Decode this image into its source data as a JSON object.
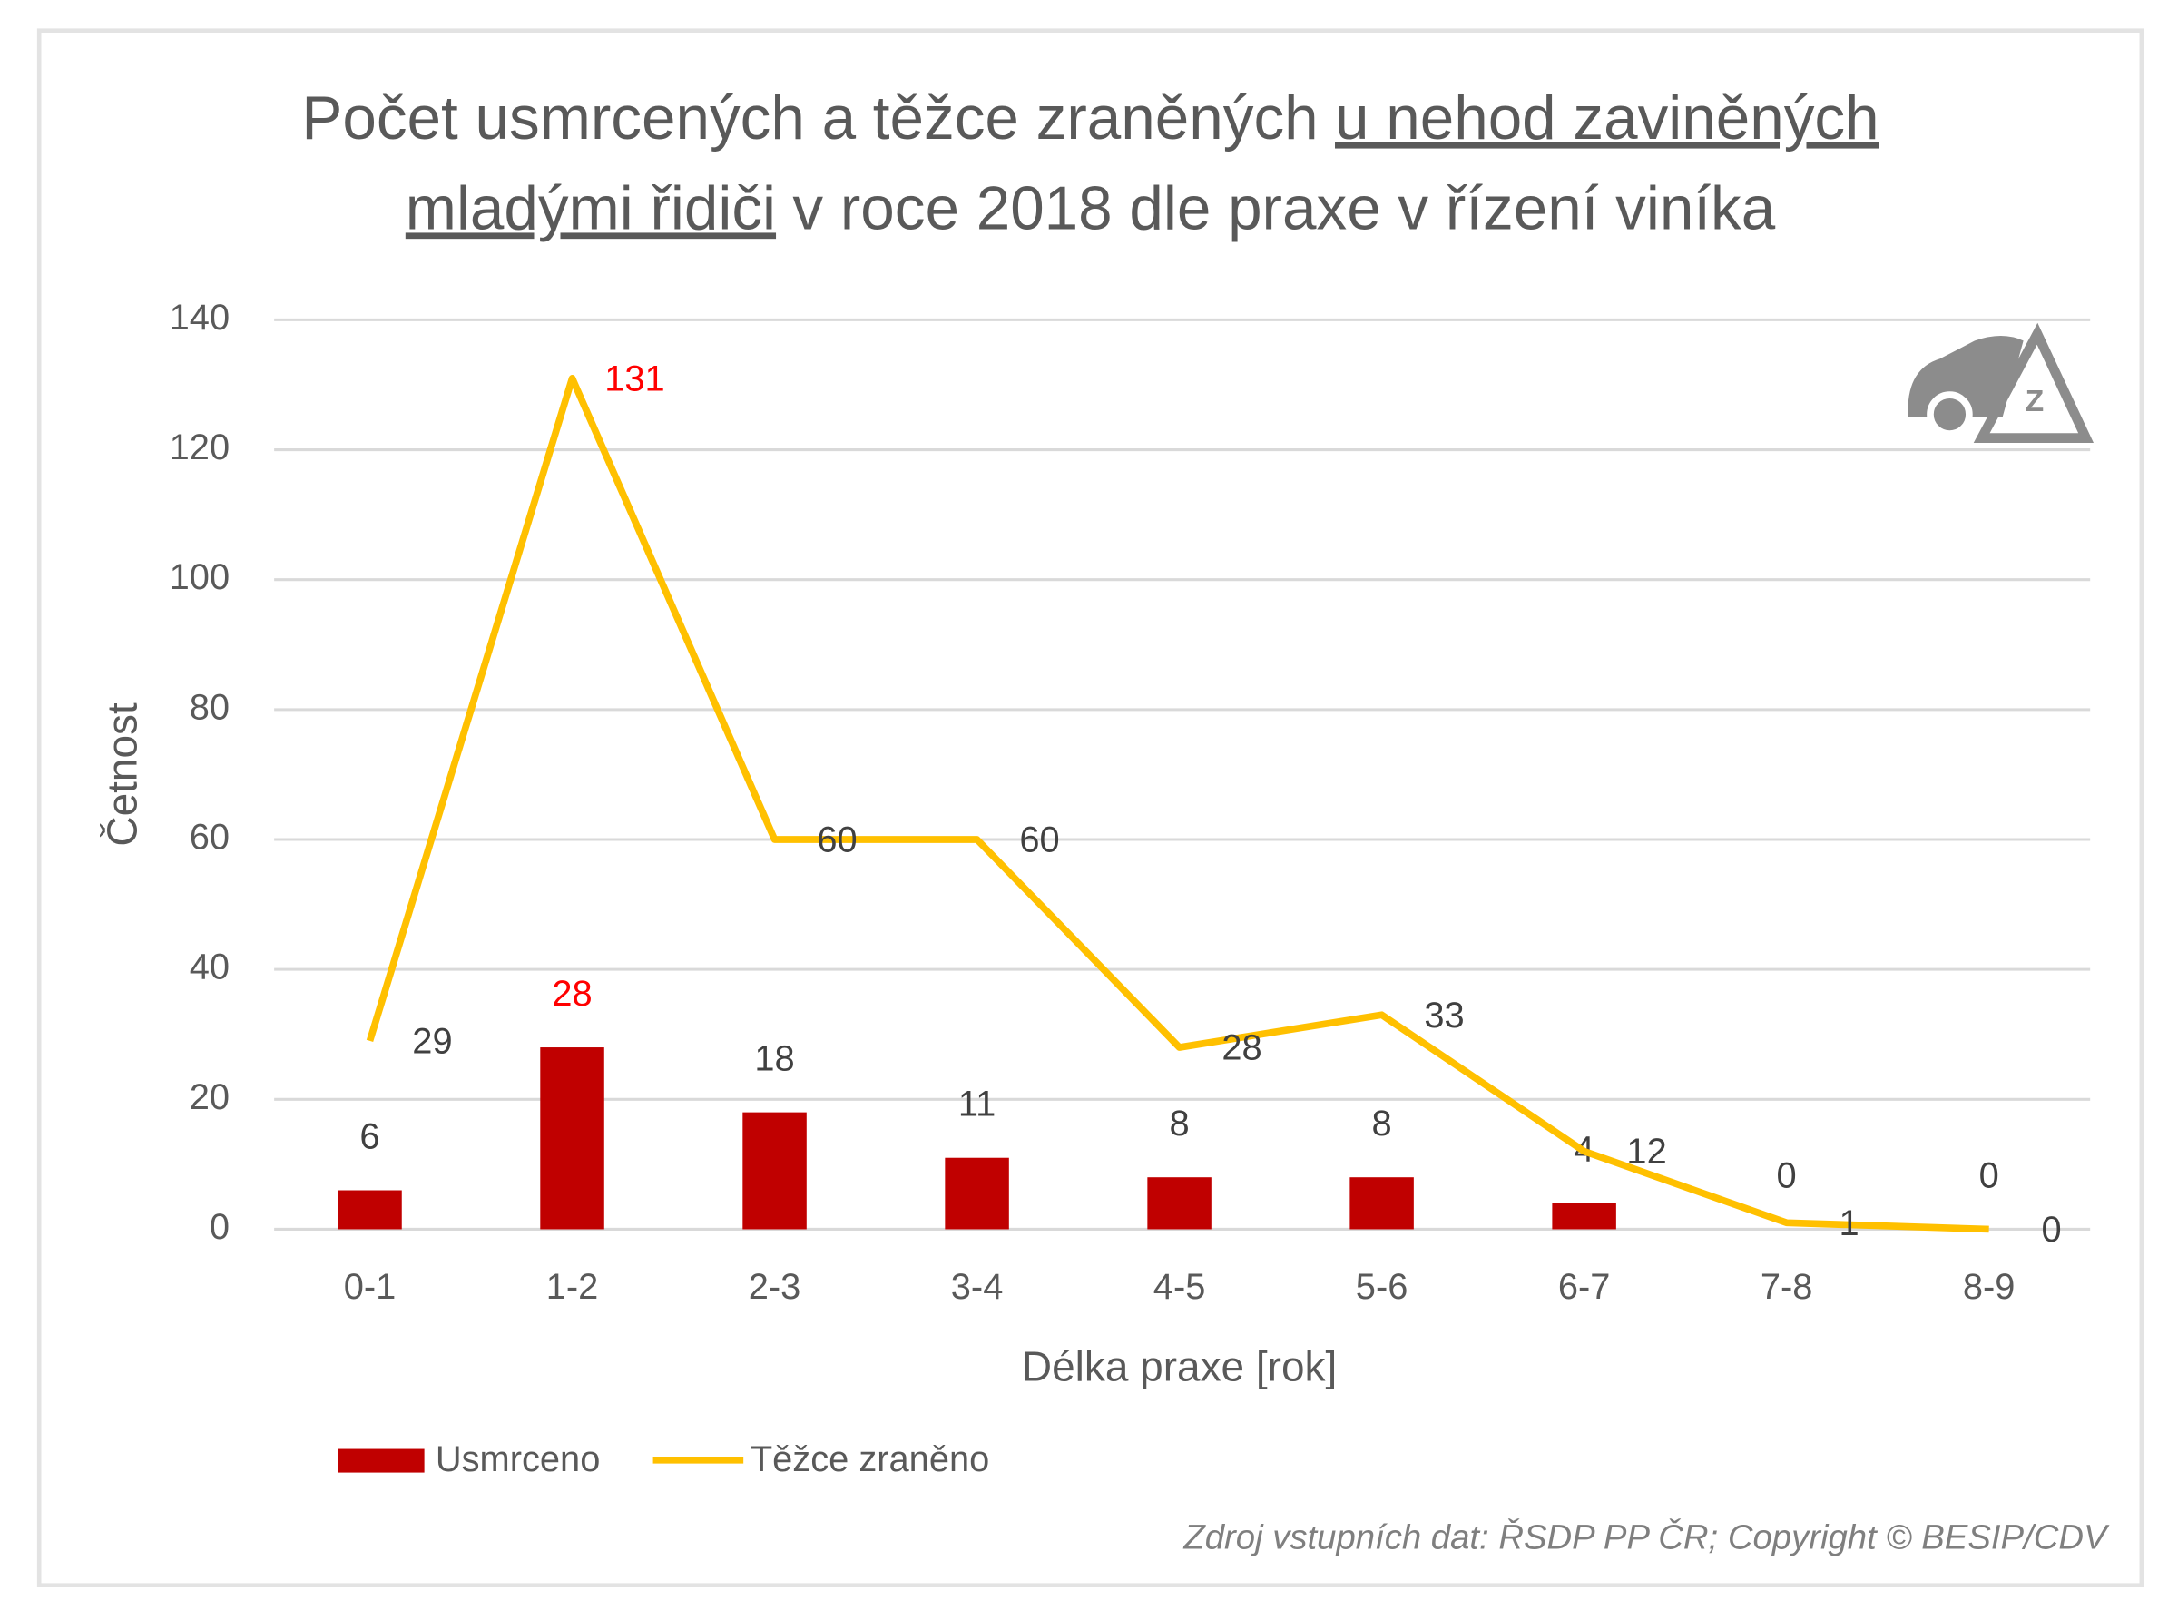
{
  "chart_data": {
    "type": "bar",
    "title": [
      [
        "Počet usmrcených a těžce zraněných",
        "u nehod zaviněných"
      ],
      [
        "mladými řidiči",
        "v roce 2018 dle praxe v řízení viníka"
      ]
    ],
    "title_underlined": [
      [
        false,
        true
      ],
      [
        true,
        false
      ]
    ],
    "x_label": "Délka praxe [rok]",
    "y_label": "Četnost",
    "categories": [
      "0-1",
      "1-2",
      "2-3",
      "3-4",
      "4-5",
      "5-6",
      "6-7",
      "7-8",
      "8-9"
    ],
    "series": [
      {
        "name": "Usmrceno",
        "type": "bar",
        "color": "#c00000",
        "values": [
          6,
          28,
          18,
          11,
          8,
          8,
          4,
          0,
          0
        ]
      },
      {
        "name": "Těžce zraněno",
        "type": "line",
        "color": "#ffc000",
        "values": [
          29,
          131,
          60,
          60,
          28,
          33,
          12,
          1,
          0
        ]
      }
    ],
    "label_color": "#404040",
    "max_label_color": "#ff0000",
    "ylim": [
      0,
      140
    ],
    "yticks": [
      0,
      20,
      40,
      60,
      80,
      100,
      120,
      140
    ],
    "grid": true,
    "legend": "bottom-left",
    "icon_text": "Z",
    "source": "Zdroj vstupních dat: ŘSDP PP ČR; Copyright © BESIP/CDV"
  }
}
